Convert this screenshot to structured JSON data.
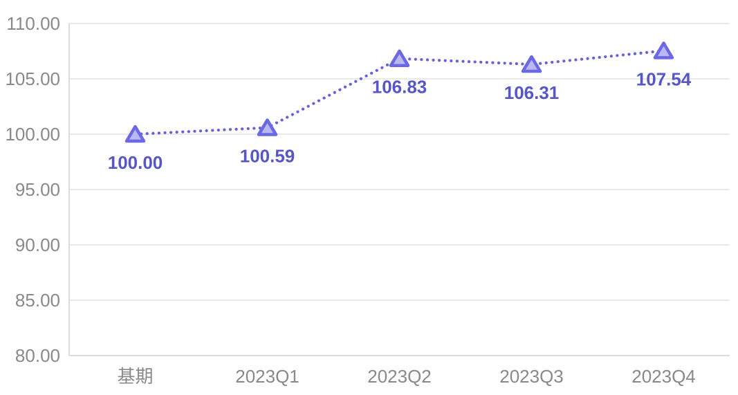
{
  "chart_data": {
    "type": "line",
    "title": "",
    "categories": [
      "基期",
      "2023Q1",
      "2023Q2",
      "2023Q3",
      "2023Q4"
    ],
    "values": [
      100.0,
      100.59,
      106.83,
      106.31,
      107.54
    ],
    "data_labels": [
      "100.00",
      "100.59",
      "106.83",
      "106.31",
      "107.54"
    ],
    "xlabel": "",
    "ylabel": "",
    "ylim": [
      80,
      110
    ],
    "ytick_step": 5,
    "ytick_labels": [
      "80.00",
      "85.00",
      "90.00",
      "95.00",
      "100.00",
      "105.00",
      "110.00"
    ],
    "grid": true,
    "legend_position": "none",
    "marker_shape": "triangle",
    "line_style": "dotted",
    "colors": {
      "line": "#6462d4",
      "marker_stroke": "#6a68e2",
      "marker_fill": "#b9b8f0",
      "data_label_text": "#5756c8",
      "axis_tick_text": "#898989",
      "gridline": "#e9e9e9",
      "axis_line": "#dcdcdc",
      "background": "#ffffff"
    }
  }
}
